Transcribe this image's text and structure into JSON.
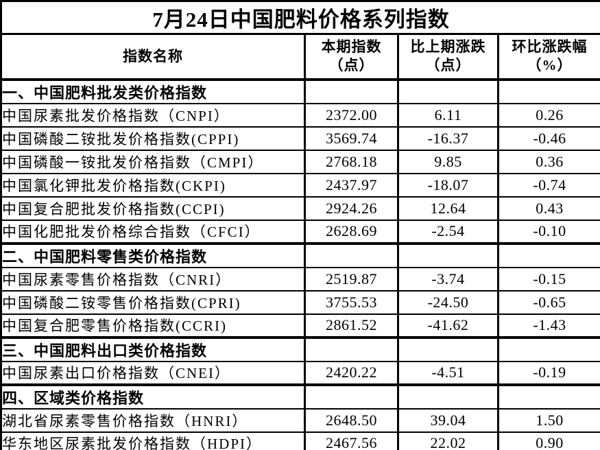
{
  "page": {
    "background_color": "#ffffff",
    "text_color": "#000000",
    "border_color": "#000000"
  },
  "table": {
    "title": "7月24日中国肥料价格系列指数",
    "columns": {
      "name": "指数名称",
      "current_line1": "本期指数",
      "current_line2": "（点）",
      "change_line1": "比上期涨跌",
      "change_line2": "（点）",
      "pct_line1": "环比涨跌幅",
      "pct_line2": "（%）"
    },
    "rows": [
      {
        "section": true,
        "name": "一、中国肥料批发类价格指数",
        "current": "",
        "change": "",
        "pct": ""
      },
      {
        "section": false,
        "name": "中国尿素批发价格指数（CNPI）",
        "current": "2372.00",
        "change": "6.11",
        "pct": "0.26"
      },
      {
        "section": false,
        "name": "中国磷酸二铵批发价格指数(CPPI)",
        "current": "3569.74",
        "change": "-16.37",
        "pct": "-0.46"
      },
      {
        "section": false,
        "name": "中国磷酸一铵批发价格指数（CMPI）",
        "current": "2768.18",
        "change": "9.85",
        "pct": "0.36"
      },
      {
        "section": false,
        "name": "中国氯化钾批发价格指数(CKPI)",
        "current": "2437.97",
        "change": "-18.07",
        "pct": "-0.74"
      },
      {
        "section": false,
        "name": "中国复合肥批发价格指数(CCPI)",
        "current": "2924.26",
        "change": "12.64",
        "pct": "0.43"
      },
      {
        "section": false,
        "name": "中国化肥批发价格综合指数（CFCI）",
        "current": "2628.69",
        "change": "-2.54",
        "pct": "-0.10"
      },
      {
        "section": true,
        "name": "二、中国肥料零售类价格指数",
        "current": "",
        "change": "",
        "pct": ""
      },
      {
        "section": false,
        "name": "中国尿素零售价格指数（CNRI）",
        "current": "2519.87",
        "change": "-3.74",
        "pct": "-0.15"
      },
      {
        "section": false,
        "name": "中国磷酸二铵零售价格指数(CPRI)",
        "current": "3755.53",
        "change": "-24.50",
        "pct": "-0.65"
      },
      {
        "section": false,
        "name": "中国复合肥零售价格指数(CCRI)",
        "current": "2861.52",
        "change": "-41.62",
        "pct": "-1.43"
      },
      {
        "section": true,
        "name": "三、中国肥料出口类价格指数",
        "current": "",
        "change": "",
        "pct": ""
      },
      {
        "section": false,
        "name": "中国尿素出口价格指数（CNEI）",
        "current": "2420.22",
        "change": "-4.51",
        "pct": "-0.19"
      },
      {
        "section": true,
        "name": "四、区域类价格指数",
        "current": "",
        "change": "",
        "pct": ""
      },
      {
        "section": false,
        "name": "湖北省尿素零售价格指数（HNRI）",
        "current": "2648.50",
        "change": "39.04",
        "pct": "1.50"
      },
      {
        "section": false,
        "name": "华东地区尿素批发价格指数（HDPI）",
        "current": "2467.56",
        "change": "22.02",
        "pct": "0.90"
      }
    ]
  }
}
